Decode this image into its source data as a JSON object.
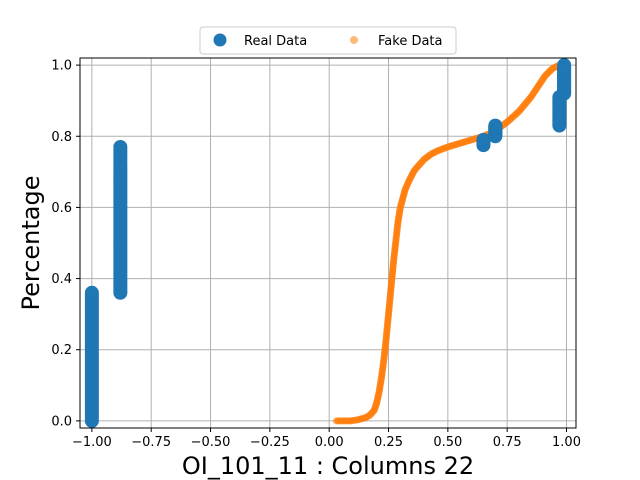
{
  "chart_data": {
    "type": "scatter",
    "title": "",
    "xlabel": "OI_101_11 : Columns 22",
    "ylabel": "Percentage",
    "xlim": [
      -1.05,
      1.04
    ],
    "ylim": [
      -0.02,
      1.02
    ],
    "xticks": [
      -1.0,
      -0.75,
      -0.5,
      -0.25,
      0.0,
      0.25,
      0.5,
      0.75,
      1.0
    ],
    "xtick_labels": [
      "−1.00",
      "−0.75",
      "−0.50",
      "−0.25",
      "0.00",
      "0.25",
      "0.50",
      "0.75",
      "1.00"
    ],
    "yticks": [
      0.0,
      0.2,
      0.4,
      0.6,
      0.8,
      1.0
    ],
    "ytick_labels": [
      "0.0",
      "0.2",
      "0.4",
      "0.6",
      "0.8",
      "1.0"
    ],
    "grid": true,
    "legend": {
      "placement": "top-center",
      "columns": 2
    },
    "series": [
      {
        "name": "Real Data",
        "color": "#1f77b4",
        "marker": "circle-large",
        "points": [
          [
            -1.0,
            0.0
          ],
          [
            -1.0,
            0.04
          ],
          [
            -1.0,
            0.08
          ],
          [
            -1.0,
            0.12
          ],
          [
            -1.0,
            0.16
          ],
          [
            -1.0,
            0.2
          ],
          [
            -1.0,
            0.24
          ],
          [
            -1.0,
            0.28
          ],
          [
            -1.0,
            0.32
          ],
          [
            -1.0,
            0.36
          ],
          [
            -0.88,
            0.36
          ],
          [
            -0.88,
            0.4
          ],
          [
            -0.88,
            0.44
          ],
          [
            -0.88,
            0.48
          ],
          [
            -0.88,
            0.52
          ],
          [
            -0.88,
            0.56
          ],
          [
            -0.88,
            0.6
          ],
          [
            -0.88,
            0.64
          ],
          [
            -0.88,
            0.68
          ],
          [
            -0.88,
            0.72
          ],
          [
            -0.88,
            0.77
          ],
          [
            0.65,
            0.775
          ],
          [
            0.65,
            0.79
          ],
          [
            0.7,
            0.8
          ],
          [
            0.7,
            0.815
          ],
          [
            0.7,
            0.83
          ],
          [
            0.97,
            0.83
          ],
          [
            0.97,
            0.85
          ],
          [
            0.97,
            0.87
          ],
          [
            0.97,
            0.89
          ],
          [
            0.97,
            0.91
          ],
          [
            0.99,
            0.92
          ],
          [
            0.99,
            0.94
          ],
          [
            0.99,
            0.96
          ],
          [
            0.99,
            0.98
          ],
          [
            0.99,
            1.0
          ]
        ]
      },
      {
        "name": "Fake Data",
        "color": "#ff7f0e",
        "marker": "circle-small",
        "points": [
          [
            0.03,
            0.0
          ],
          [
            0.06,
            0.0
          ],
          [
            0.09,
            0.0
          ],
          [
            0.12,
            0.003
          ],
          [
            0.15,
            0.008
          ],
          [
            0.17,
            0.015
          ],
          [
            0.19,
            0.03
          ],
          [
            0.2,
            0.05
          ],
          [
            0.21,
            0.08
          ],
          [
            0.22,
            0.12
          ],
          [
            0.23,
            0.17
          ],
          [
            0.24,
            0.23
          ],
          [
            0.25,
            0.3
          ],
          [
            0.26,
            0.37
          ],
          [
            0.27,
            0.44
          ],
          [
            0.28,
            0.5
          ],
          [
            0.29,
            0.56
          ],
          [
            0.3,
            0.6
          ],
          [
            0.32,
            0.65
          ],
          [
            0.34,
            0.68
          ],
          [
            0.36,
            0.705
          ],
          [
            0.38,
            0.72
          ],
          [
            0.4,
            0.735
          ],
          [
            0.43,
            0.75
          ],
          [
            0.46,
            0.76
          ],
          [
            0.5,
            0.77
          ],
          [
            0.55,
            0.78
          ],
          [
            0.6,
            0.79
          ],
          [
            0.65,
            0.8
          ],
          [
            0.7,
            0.815
          ],
          [
            0.75,
            0.84
          ],
          [
            0.8,
            0.87
          ],
          [
            0.85,
            0.91
          ],
          [
            0.88,
            0.94
          ],
          [
            0.91,
            0.97
          ],
          [
            0.94,
            0.99
          ],
          [
            0.97,
            1.0
          ],
          [
            1.0,
            1.0
          ]
        ]
      }
    ]
  }
}
